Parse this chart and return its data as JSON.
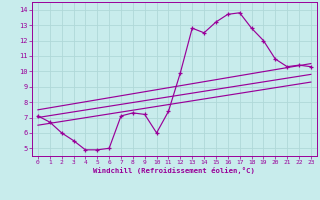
{
  "xlabel": "Windchill (Refroidissement éolien,°C)",
  "xlim": [
    -0.5,
    23.5
  ],
  "ylim": [
    4.5,
    14.5
  ],
  "xticks": [
    0,
    1,
    2,
    3,
    4,
    5,
    6,
    7,
    8,
    9,
    10,
    11,
    12,
    13,
    14,
    15,
    16,
    17,
    18,
    19,
    20,
    21,
    22,
    23
  ],
  "yticks": [
    5,
    6,
    7,
    8,
    9,
    10,
    11,
    12,
    13,
    14
  ],
  "bg_color": "#c8ecec",
  "line_color": "#990099",
  "grid_color": "#b0d8d8",
  "data_x": [
    0,
    1,
    2,
    3,
    4,
    5,
    6,
    7,
    8,
    9,
    10,
    11,
    12,
    13,
    14,
    15,
    16,
    17,
    18,
    19,
    20,
    21,
    22,
    23
  ],
  "data_y": [
    7.1,
    6.7,
    6.0,
    5.5,
    4.9,
    4.9,
    5.0,
    7.1,
    7.3,
    7.2,
    6.0,
    7.4,
    9.9,
    12.8,
    12.5,
    13.2,
    13.7,
    13.8,
    12.8,
    12.0,
    10.8,
    10.3,
    10.4,
    10.3
  ],
  "trend_lines": [
    {
      "x0": 0.0,
      "y0": 6.5,
      "x1": 23.0,
      "y1": 9.3
    },
    {
      "x0": 0.0,
      "y0": 7.0,
      "x1": 23.0,
      "y1": 9.8
    },
    {
      "x0": 0.0,
      "y0": 7.5,
      "x1": 23.0,
      "y1": 10.5
    }
  ]
}
